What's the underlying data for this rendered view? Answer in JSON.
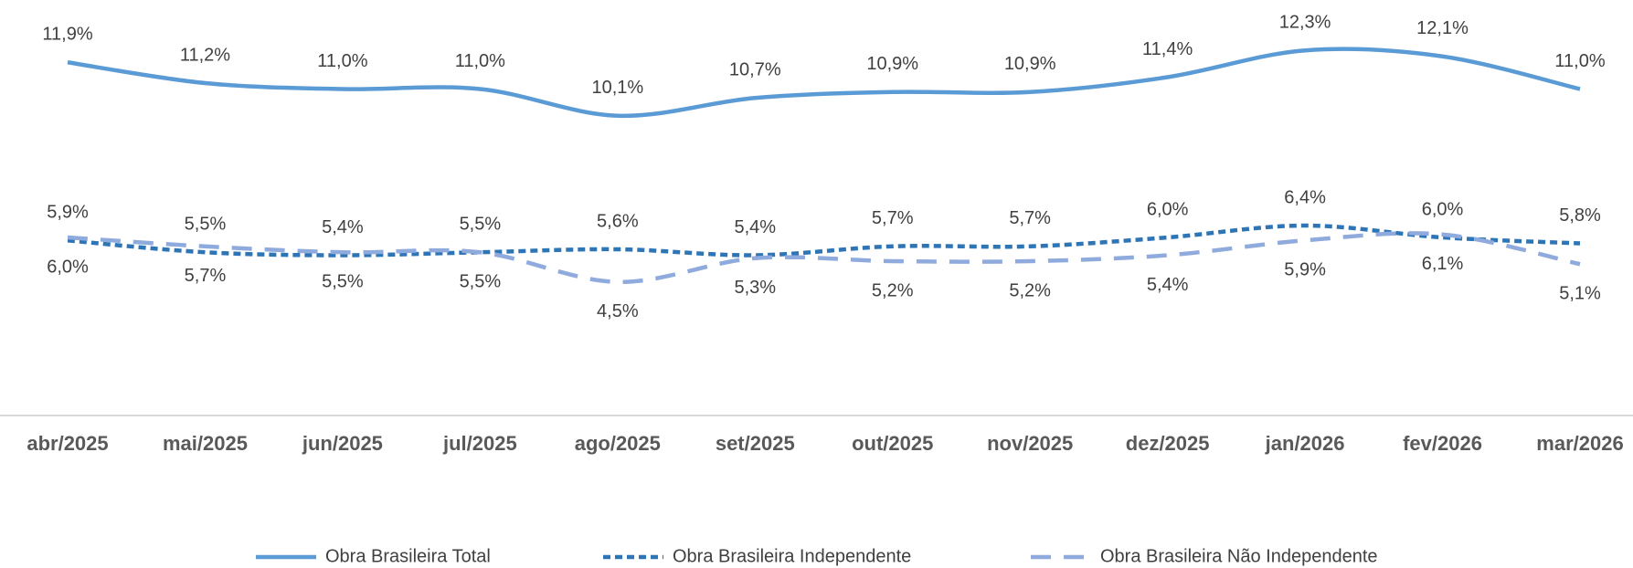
{
  "chart_data": {
    "type": "line",
    "categories": [
      "abr/2025",
      "mai/2025",
      "jun/2025",
      "jul/2025",
      "ago/2025",
      "set/2025",
      "out/2025",
      "nov/2025",
      "dez/2025",
      "jan/2026",
      "fev/2026",
      "mar/2026"
    ],
    "ylim": [
      0,
      14
    ],
    "series": [
      {
        "name": "Obra Brasileira Total",
        "color": "#5b9bd5",
        "dash": "solid",
        "values": [
          11.9,
          11.2,
          11.0,
          11.0,
          10.1,
          10.7,
          10.9,
          10.9,
          11.4,
          12.3,
          12.1,
          11.0
        ],
        "value_labels": [
          "11,9%",
          "11,2%",
          "11,0%",
          "11,0%",
          "10,1%",
          "10,7%",
          "10,9%",
          "10,9%",
          "11,4%",
          "12,3%",
          "12,1%",
          "11,0%"
        ]
      },
      {
        "name": "Obra Brasileira Independente",
        "color": "#2e75b6",
        "dash": "dotted",
        "values": [
          5.9,
          5.5,
          5.4,
          5.5,
          5.6,
          5.4,
          5.7,
          5.7,
          6.0,
          6.4,
          6.0,
          5.8
        ],
        "value_labels": [
          "5,9%",
          "5,5%",
          "5,4%",
          "5,5%",
          "5,6%",
          "5,4%",
          "5,7%",
          "5,7%",
          "6,0%",
          "6,4%",
          "6,0%",
          "5,8%"
        ]
      },
      {
        "name": "Obra Brasileira Não Independente",
        "color": "#8faadc",
        "dash": "dashed",
        "values": [
          6.0,
          5.7,
          5.5,
          5.5,
          4.5,
          5.3,
          5.2,
          5.2,
          5.4,
          5.9,
          6.1,
          5.1
        ],
        "value_labels": [
          "6,0%",
          "5,7%",
          "5,5%",
          "5,5%",
          "4,5%",
          "5,3%",
          "5,2%",
          "5,2%",
          "5,4%",
          "5,9%",
          "6,1%",
          "5,1%"
        ]
      }
    ],
    "legend": "bottom"
  }
}
